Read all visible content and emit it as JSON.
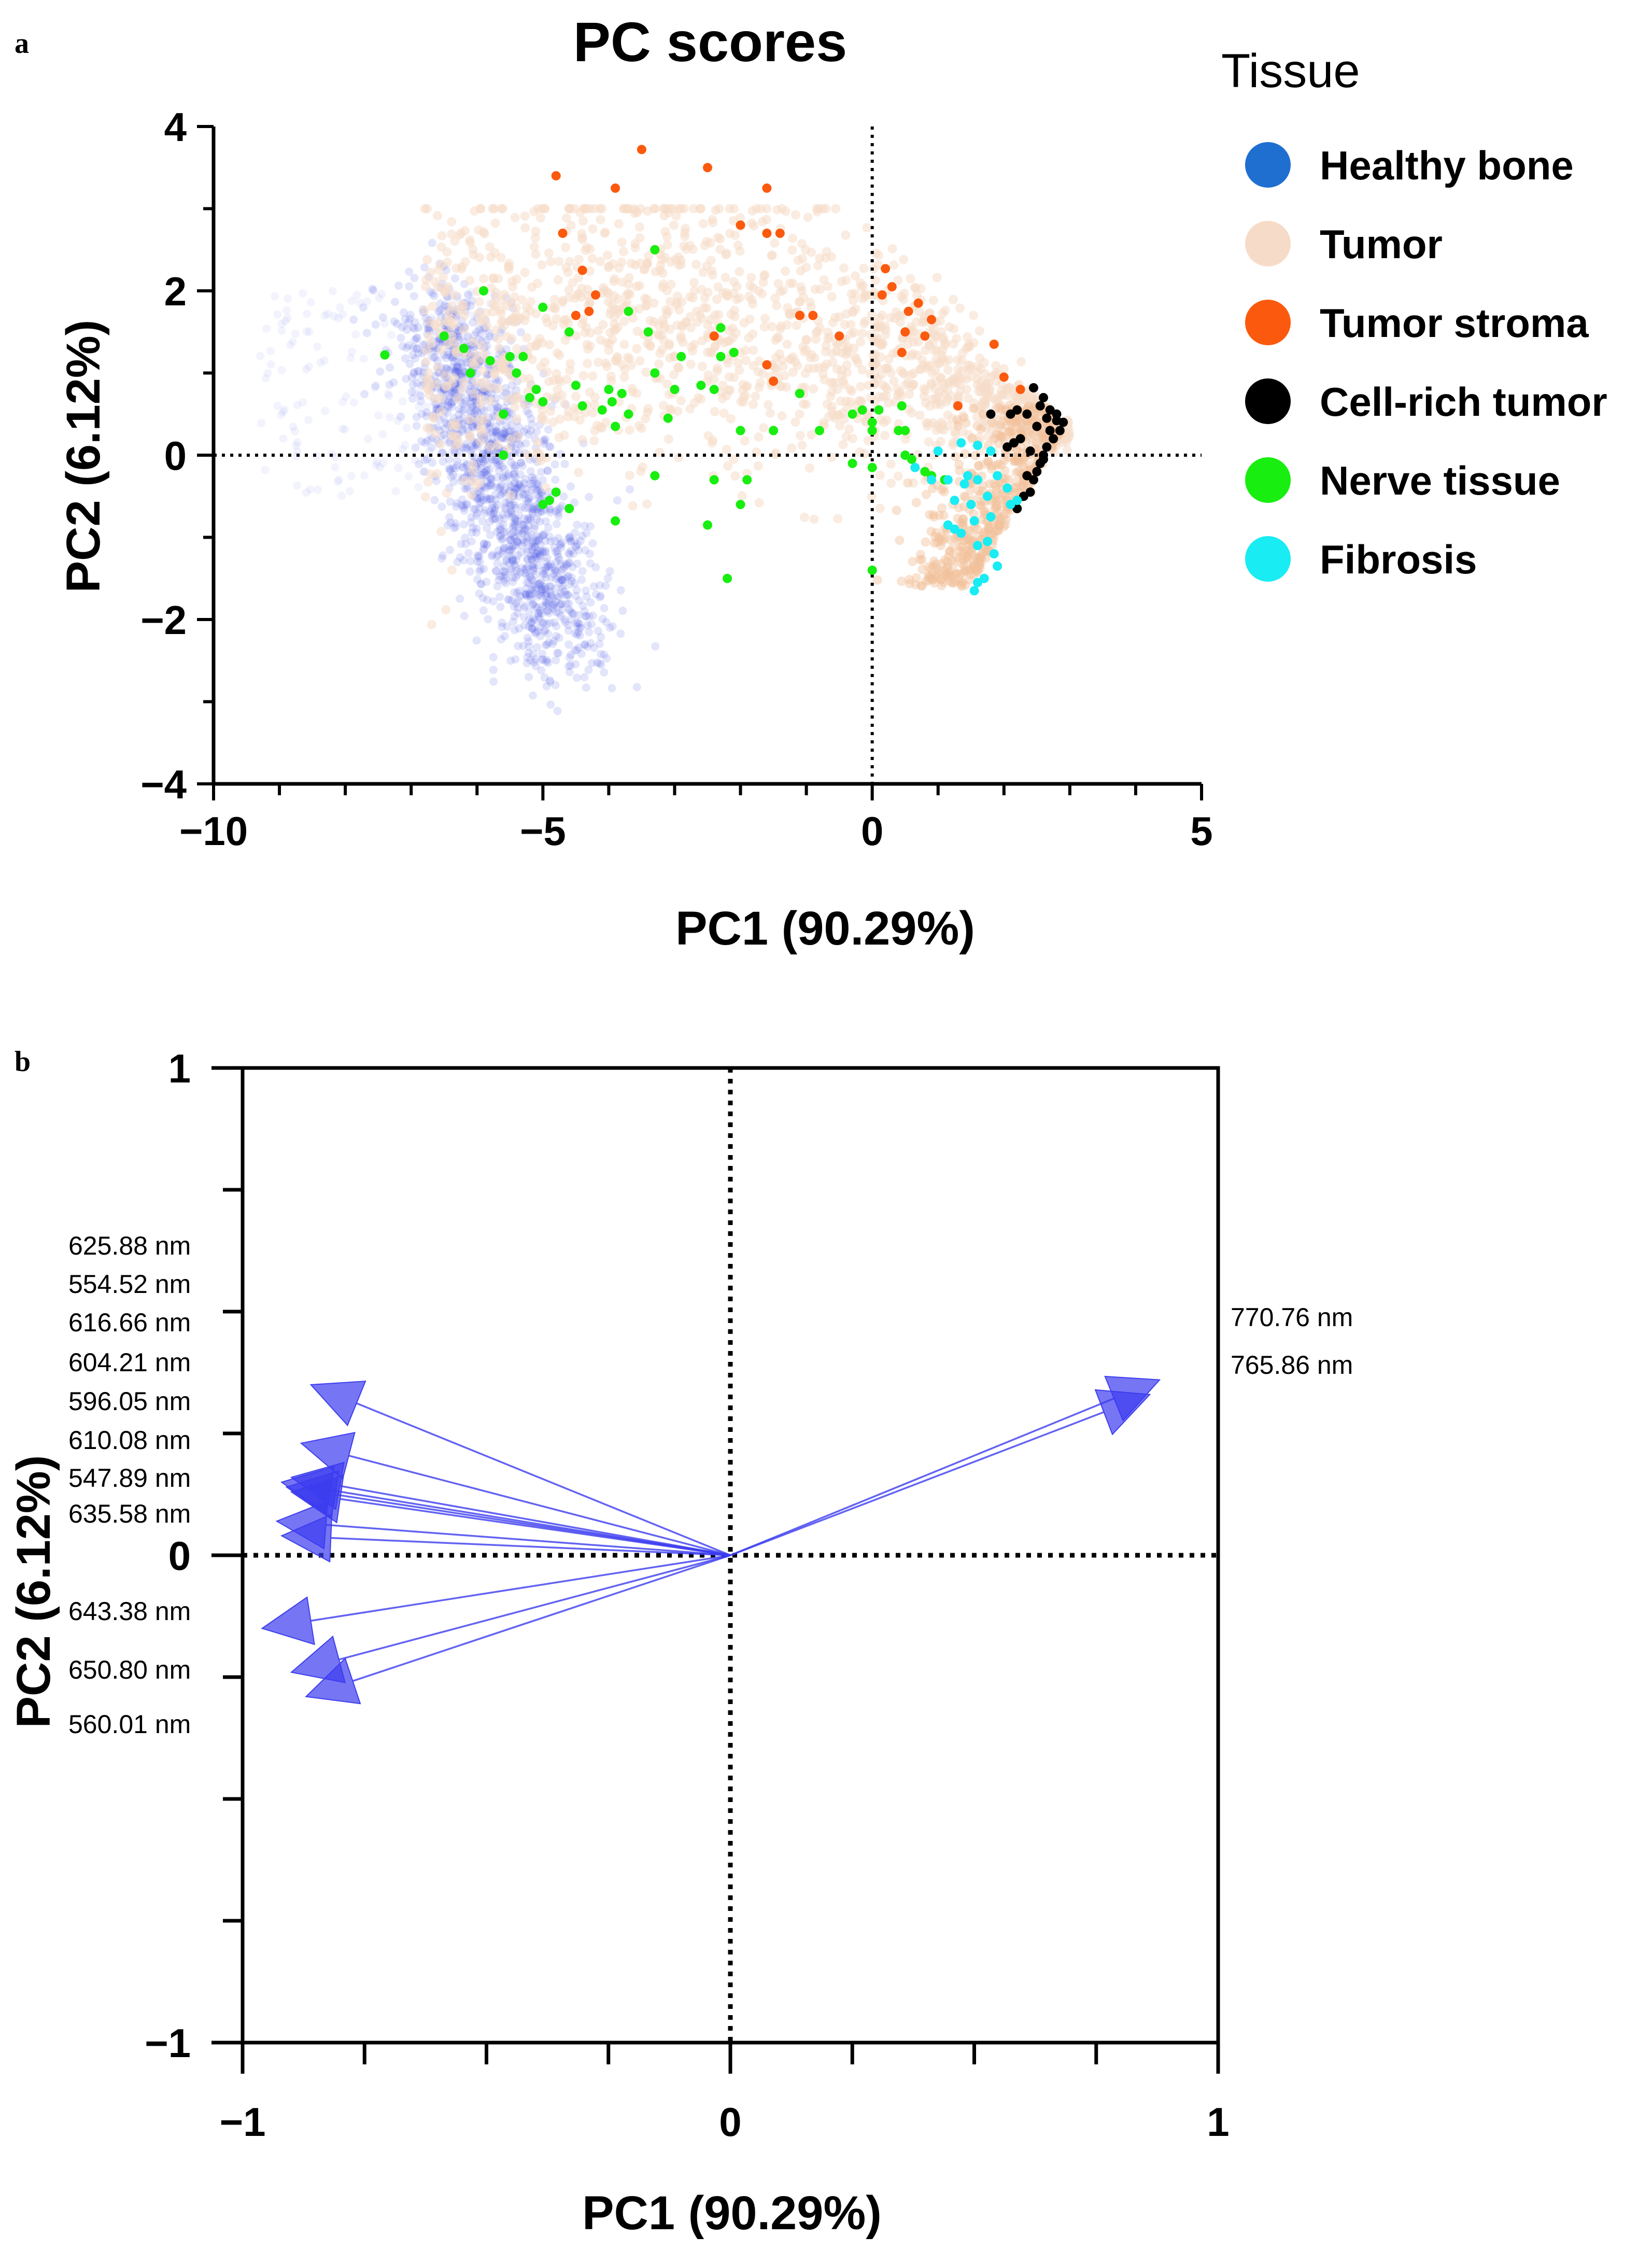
{
  "panel_a": {
    "letter": "a",
    "title": "PC scores",
    "xlabel": "PC1 (90.29%)",
    "ylabel": "PC2  (6.12%)",
    "xticks": [
      -10,
      -5,
      0,
      5
    ],
    "yticks": [
      4,
      2,
      0,
      -2,
      -4
    ],
    "xtick_labels": [
      "−10",
      "−5",
      "0",
      "5"
    ],
    "ytick_labels": [
      "4",
      "2",
      "0",
      "−2",
      "−4"
    ],
    "legend_title": "Tissue"
  },
  "panel_b": {
    "letter": "b",
    "xlabel": "PC1 (90.29%)",
    "ylabel": "PC2 (6.12%)",
    "xtick_labels": [
      "−1",
      "0",
      "1"
    ],
    "ytick_labels": [
      "1",
      "0",
      "−1"
    ]
  },
  "colors": {
    "healthy_bone": "#1f6fd0",
    "tumor": "#f6dcc8",
    "tumor_stroma": "#fb5a0e",
    "cell_rich_tumor": "#000000",
    "nerve_tissue": "#18ee10",
    "fibrosis": "#19ecf2",
    "arrow": "#3c3cf0"
  },
  "chart_data": [
    {
      "type": "scatter",
      "title": "PC scores",
      "xlabel": "PC1 (90.29%)",
      "ylabel": "PC2  (6.12%)",
      "xlim": [
        -10,
        5
      ],
      "ylim": [
        -4,
        4
      ],
      "reference_lines": {
        "x": 0,
        "y": 0,
        "style": "dotted"
      },
      "legend": {
        "title": "Tissue",
        "placement": "right"
      },
      "series": [
        {
          "name": "Healthy bone",
          "color": "#1f6fd0",
          "description": "dense band of translucent points from about (-6.8, 1.6) to (-4.5, -2.9)"
        },
        {
          "name": "Tumor",
          "color": "#f6dcc8",
          "description": "broad translucent cloud from about (-7, 1.5) to (3, 0.4), y between -2 and 3"
        },
        {
          "name": "Tumor stroma",
          "color": "#fb5a0e",
          "points": [
            [
              -3.5,
              3.72
            ],
            [
              -2.5,
              3.5
            ],
            [
              -4.8,
              3.4
            ],
            [
              -3.9,
              3.25
            ],
            [
              -1.6,
              3.25
            ],
            [
              -2.0,
              2.8
            ],
            [
              -1.6,
              2.7
            ],
            [
              -1.4,
              2.7
            ],
            [
              -4.7,
              2.7
            ],
            [
              -3.3,
              2.5
            ],
            [
              -4.4,
              2.25
            ],
            [
              0.2,
              2.27
            ],
            [
              0.3,
              2.05
            ],
            [
              -4.2,
              1.95
            ],
            [
              0.15,
              1.95
            ],
            [
              -4.3,
              1.75
            ],
            [
              -4.5,
              1.7
            ],
            [
              0.55,
              1.75
            ],
            [
              0.7,
              1.85
            ],
            [
              0.9,
              1.65
            ],
            [
              0.5,
              1.5
            ],
            [
              0.8,
              1.45
            ],
            [
              -2.4,
              1.45
            ],
            [
              -1.1,
              1.7
            ],
            [
              -0.9,
              1.7
            ],
            [
              -0.5,
              1.45
            ],
            [
              -1.6,
              1.1
            ],
            [
              -1.5,
              0.9
            ],
            [
              1.85,
              1.35
            ],
            [
              2.0,
              0.95
            ],
            [
              2.25,
              0.8
            ],
            [
              1.3,
              0.6
            ],
            [
              0.45,
              1.25
            ]
          ]
        },
        {
          "name": "Cell-rich tumor",
          "color": "#000000",
          "points": [
            [
              2.45,
              0.82
            ],
            [
              2.6,
              0.7
            ],
            [
              2.7,
              0.55
            ],
            [
              2.8,
              0.5
            ],
            [
              2.9,
              0.4
            ],
            [
              2.85,
              0.3
            ],
            [
              2.75,
              0.2
            ],
            [
              2.65,
              0.1
            ],
            [
              2.6,
              0.0
            ],
            [
              2.55,
              -0.1
            ],
            [
              2.5,
              -0.2
            ],
            [
              2.45,
              -0.3
            ],
            [
              2.4,
              -0.45
            ],
            [
              2.3,
              -0.5
            ],
            [
              2.2,
              -0.65
            ],
            [
              2.5,
              0.35
            ],
            [
              2.35,
              0.5
            ],
            [
              2.2,
              0.55
            ],
            [
              2.1,
              0.5
            ],
            [
              2.25,
              0.2
            ],
            [
              2.6,
              -0.05
            ],
            [
              2.05,
              0.1
            ],
            [
              2.15,
              0.15
            ],
            [
              2.4,
              0.05
            ],
            [
              2.8,
              0.42
            ],
            [
              2.7,
              0.3
            ],
            [
              1.8,
              0.5
            ],
            [
              2.55,
              0.6
            ],
            [
              2.65,
              0.45
            ],
            [
              2.35,
              -0.25
            ]
          ]
        },
        {
          "name": "Nerve tissue",
          "color": "#18ee10",
          "points": [
            [
              -7.4,
              1.22
            ],
            [
              -6.5,
              1.45
            ],
            [
              -6.2,
              1.3
            ],
            [
              -5.9,
              2.0
            ],
            [
              -5.8,
              1.15
            ],
            [
              -6.1,
              1.0
            ],
            [
              -5.5,
              1.2
            ],
            [
              -5.3,
              1.2
            ],
            [
              -5.4,
              1.0
            ],
            [
              -5.1,
              0.8
            ],
            [
              -5.0,
              0.65
            ],
            [
              -5.0,
              1.8
            ],
            [
              -5.2,
              0.7
            ],
            [
              -5.6,
              0.5
            ],
            [
              -4.6,
              1.5
            ],
            [
              -4.5,
              0.85
            ],
            [
              -4.4,
              0.6
            ],
            [
              -4.1,
              0.55
            ],
            [
              -4.0,
              0.8
            ],
            [
              -3.95,
              0.65
            ],
            [
              -3.9,
              0.35
            ],
            [
              -3.8,
              0.75
            ],
            [
              -3.7,
              0.5
            ],
            [
              -3.7,
              1.75
            ],
            [
              -3.4,
              1.5
            ],
            [
              -3.3,
              2.5
            ],
            [
              -3.3,
              1.0
            ],
            [
              -3.1,
              0.45
            ],
            [
              -3.0,
              0.8
            ],
            [
              -2.9,
              1.2
            ],
            [
              -2.6,
              0.85
            ],
            [
              -2.4,
              0.8
            ],
            [
              -2.3,
              1.2
            ],
            [
              -2.3,
              1.55
            ],
            [
              -2.1,
              1.25
            ],
            [
              -2.0,
              0.3
            ],
            [
              -1.5,
              0.3
            ],
            [
              -1.1,
              0.75
            ],
            [
              -0.8,
              0.3
            ],
            [
              -5.6,
              0.0
            ],
            [
              -5.0,
              -0.6
            ],
            [
              -4.9,
              -0.55
            ],
            [
              -4.8,
              -0.45
            ],
            [
              -4.6,
              -0.65
            ],
            [
              -3.9,
              -0.8
            ],
            [
              -3.3,
              -0.25
            ],
            [
              -2.5,
              -0.85
            ],
            [
              -1.9,
              -0.3
            ],
            [
              -2.2,
              -1.5
            ],
            [
              -2.0,
              -0.6
            ],
            [
              -2.4,
              -0.3
            ],
            [
              -0.3,
              0.5
            ],
            [
              -0.15,
              0.55
            ],
            [
              0.0,
              0.4
            ],
            [
              0.1,
              0.55
            ],
            [
              0.4,
              0.3
            ],
            [
              0.5,
              0.3
            ],
            [
              0.5,
              0.0
            ],
            [
              0.6,
              -0.05
            ],
            [
              0.8,
              -0.2
            ],
            [
              0.9,
              -0.25
            ],
            [
              1.1,
              -0.3
            ],
            [
              0.0,
              -0.15
            ],
            [
              0.0,
              -1.4
            ],
            [
              -0.3,
              -0.1
            ],
            [
              0.45,
              0.6
            ],
            [
              0.0,
              0.3
            ]
          ]
        },
        {
          "name": "Fibrosis",
          "color": "#19ecf2",
          "points": [
            [
              1.35,
              0.15
            ],
            [
              1.6,
              0.12
            ],
            [
              1.8,
              0.05
            ],
            [
              1.0,
              0.05
            ],
            [
              0.65,
              -0.15
            ],
            [
              0.9,
              -0.3
            ],
            [
              1.15,
              -0.3
            ],
            [
              1.4,
              -0.35
            ],
            [
              1.6,
              -0.3
            ],
            [
              1.9,
              -0.25
            ],
            [
              2.05,
              -0.4
            ],
            [
              1.75,
              -0.5
            ],
            [
              1.25,
              -0.55
            ],
            [
              1.5,
              -0.6
            ],
            [
              1.8,
              -0.75
            ],
            [
              1.55,
              -0.8
            ],
            [
              1.35,
              -0.95
            ],
            [
              1.15,
              -0.85
            ],
            [
              1.75,
              -1.05
            ],
            [
              1.6,
              -1.1
            ],
            [
              1.85,
              -1.2
            ],
            [
              1.9,
              -1.35
            ],
            [
              1.55,
              -1.65
            ],
            [
              1.6,
              -1.55
            ],
            [
              1.7,
              -1.5
            ],
            [
              2.2,
              -0.55
            ],
            [
              2.1,
              -0.6
            ],
            [
              1.45,
              -0.25
            ],
            [
              1.25,
              -0.9
            ]
          ]
        }
      ]
    },
    {
      "type": "biplot",
      "xlabel": "PC1 (90.29%)",
      "ylabel": "PC2 (6.12%)",
      "xlim": [
        -1,
        1
      ],
      "ylim": [
        -1,
        1
      ],
      "reference_lines": {
        "x": 0,
        "y": 0,
        "style": "dotted"
      },
      "loadings": [
        {
          "label": "625.88 nm",
          "x": -0.86,
          "y": 0.35
        },
        {
          "label": "554.52 nm",
          "x": -0.88,
          "y": 0.23
        },
        {
          "label": "616.66 nm",
          "x": -0.92,
          "y": 0.15
        },
        {
          "label": "604.21 nm",
          "x": -0.91,
          "y": 0.14
        },
        {
          "label": "596.05 nm",
          "x": -0.9,
          "y": 0.13
        },
        {
          "label": "610.08 nm",
          "x": -0.9,
          "y": 0.16
        },
        {
          "label": "547.89 nm",
          "x": -0.93,
          "y": 0.07
        },
        {
          "label": "635.58 nm",
          "x": -0.92,
          "y": 0.04
        },
        {
          "label": "643.38 nm",
          "x": -0.96,
          "y": -0.15
        },
        {
          "label": "650.80 nm",
          "x": -0.9,
          "y": -0.24
        },
        {
          "label": "560.01 nm",
          "x": -0.87,
          "y": -0.29
        },
        {
          "label": "770.76 nm",
          "x": 0.88,
          "y": 0.36
        },
        {
          "label": "765.86 nm",
          "x": 0.86,
          "y": 0.33
        }
      ],
      "label_columns": {
        "left": [
          "625.88 nm",
          "554.52 nm",
          "616.66 nm",
          "604.21 nm",
          "596.05 nm",
          "610.08 nm",
          "547.89 nm",
          "635.58 nm",
          "643.38 nm",
          "650.80 nm",
          "560.01 nm"
        ],
        "right": [
          "770.76 nm",
          "765.86 nm"
        ]
      }
    }
  ],
  "legend_items": [
    {
      "label": "Healthy bone",
      "color": "#1f6fd0"
    },
    {
      "label": "Tumor",
      "color": "#f6dcc8"
    },
    {
      "label": "Tumor stroma",
      "color": "#fb5a0e"
    },
    {
      "label": "Cell-rich tumor",
      "color": "#000000"
    },
    {
      "label": "Nerve tissue",
      "color": "#18ee10"
    },
    {
      "label": "Fibrosis",
      "color": "#19ecf2"
    }
  ]
}
